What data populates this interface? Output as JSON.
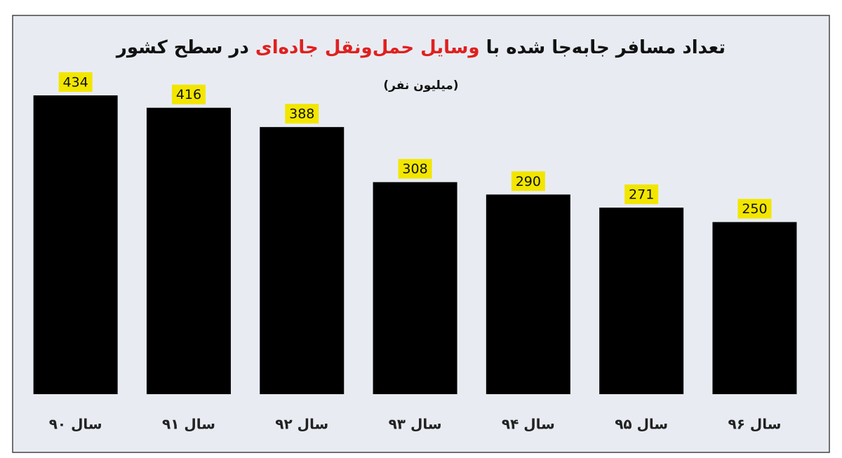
{
  "chart_data": {
    "type": "bar",
    "title": [
      "تعداد مسافر جابه‌جا شده با",
      "وسایل حمل‌ونقل جاده‌ای",
      "در سطح کشور"
    ],
    "title_colors": [
      "#111111",
      "#e02020",
      "#111111"
    ],
    "subtitle": "(میلیون نفر)",
    "categories": [
      "سال ۹۰",
      "سال ۹۱",
      "سال ۹۲",
      "سال ۹۳",
      "سال ۹۴",
      "سال ۹۵",
      "سال ۹۶"
    ],
    "values": [
      434,
      416,
      388,
      308,
      290,
      271,
      250
    ],
    "color": "#000000",
    "label_background": "#f2e600"
  }
}
